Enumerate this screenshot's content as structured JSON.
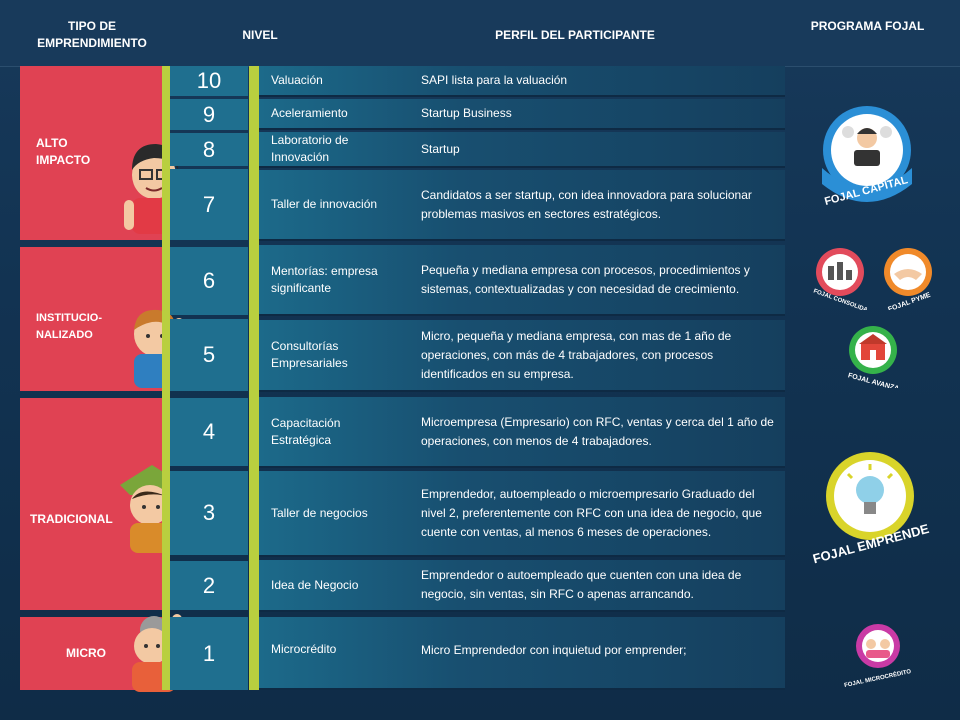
{
  "header": {
    "col_tipo": "TIPO DE EMPRENDIMIENTO",
    "col_nivel": "NIVEL",
    "col_perfil": "PERFIL DEL PARTICIPANTE",
    "col_programa": "PROGRAMA FOJAL"
  },
  "categories": [
    {
      "label": "ALTO IMPACTO"
    },
    {
      "label": "INSTITUCIO-NALIZADO"
    },
    {
      "label": "TRADICIONAL"
    },
    {
      "label": "MICRO"
    }
  ],
  "levels": [
    {
      "number": "10",
      "nivel": "Valuación",
      "perfil": "SAPI lista para la valuación"
    },
    {
      "number": "9",
      "nivel": "Aceleramiento",
      "perfil": "Startup Business"
    },
    {
      "number": "8",
      "nivel": "Laboratorio de Innovación",
      "perfil": "Startup"
    },
    {
      "number": "7",
      "nivel": "Taller de innovación",
      "perfil": "Candidatos a ser startup, con idea innovadora para solucionar problemas masivos en sectores estratégicos."
    },
    {
      "number": "6",
      "nivel": "Mentorías: empresa significante",
      "perfil": "Pequeña y mediana empresa con procesos, procedimientos y sistemas, contextualizadas y con necesidad de crecimiento."
    },
    {
      "number": "5",
      "nivel": "Consultorías Empresariales",
      "perfil": "Micro, pequeña y mediana empresa, con mas de 1 año de operaciones, con más de 4 trabajadores, con procesos identificados en su empresa."
    },
    {
      "number": "4",
      "nivel": "Capacitación Estratégica",
      "perfil": "Microempresa (Empresario) con RFC, ventas y cerca del 1 año de operaciones, con menos de 4 trabajadores."
    },
    {
      "number": "3",
      "nivel": "Taller de negocios",
      "perfil": "Emprendedor, autoempleado o microempresario Graduado del nivel 2, preferentemente con RFC con una idea de negocio, que cuente con ventas, al menos 6 meses de operaciones."
    },
    {
      "number": "2",
      "nivel": "Idea de Negocio",
      "perfil": "Emprendedor o autoempleado que cuenten con una idea de negocio, sin ventas, sin RFC o apenas arrancando."
    },
    {
      "number": "1",
      "nivel": "Microcrédito",
      "perfil": "Micro Emprendedor con inquietud por emprender;"
    }
  ],
  "programs": [
    {
      "name": "FOJAL CAPITAL",
      "color": "#2b8fd6"
    },
    {
      "name": "FOJAL CONSOLIDA",
      "color": "#e24b5c"
    },
    {
      "name": "FOJAL PYME",
      "color": "#f08a2a"
    },
    {
      "name": "FOJAL AVANZA",
      "color": "#35b24a"
    },
    {
      "name": "FOJAL EMPRENDE",
      "color": "#d9d42a"
    },
    {
      "name": "FOJAL MICROCRÉDITO",
      "color": "#c93aa5"
    }
  ],
  "colors": {
    "band_red": "#e04253",
    "accent_green": "#b9cf3f",
    "row_teal": "#1c6a8a",
    "background": "#0f2f4c"
  }
}
